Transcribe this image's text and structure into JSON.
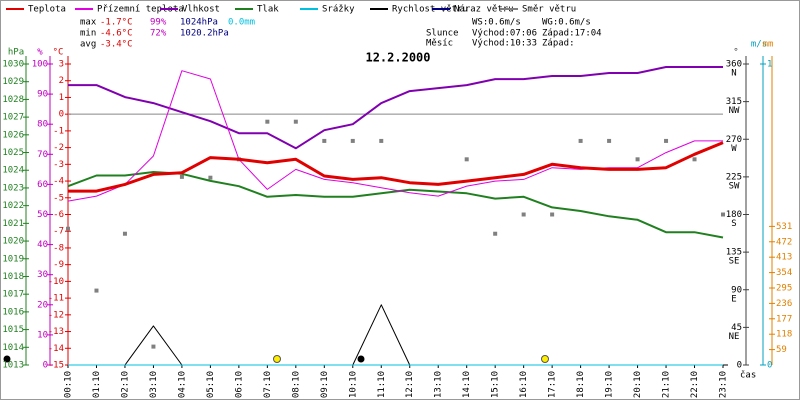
{
  "chart_data": {
    "type": "line",
    "title": "12.2.2000",
    "categories": [
      "00:10",
      "01:10",
      "02:10",
      "03:10",
      "04:10",
      "05:10",
      "06:10",
      "07:10",
      "08:10",
      "09:10",
      "10:10",
      "11:10",
      "12:10",
      "13:10",
      "14:10",
      "15:10",
      "16:10",
      "17:10",
      "18:10",
      "19:10",
      "20:10",
      "21:10",
      "22:10",
      "23:10"
    ],
    "x_label": "čas",
    "axes": [
      {
        "name": "hPa",
        "color": "#208020",
        "lim": [
          1013,
          1030
        ],
        "ticks": [
          1013,
          1014,
          1015,
          1016,
          1017,
          1018,
          1019,
          1020,
          1021,
          1022,
          1023,
          1024,
          1025,
          1026,
          1027,
          1028,
          1029,
          1030
        ]
      },
      {
        "name": "%",
        "color": "#c000c0",
        "lim": [
          0,
          100
        ],
        "ticks": [
          0,
          10,
          20,
          30,
          40,
          50,
          60,
          70,
          80,
          90,
          100
        ]
      },
      {
        "name": "°C",
        "color": "#e00000",
        "lim": [
          -15,
          3
        ],
        "ticks": [
          -15,
          -14,
          -13,
          -12,
          -11,
          -10,
          -9,
          -8,
          -7,
          -6,
          -5,
          -4,
          -3,
          -2,
          -1,
          0,
          1,
          2,
          3
        ]
      },
      {
        "name": "°",
        "color": "#404040",
        "lim": [
          0,
          360
        ],
        "ticks": [
          0,
          {
            "value": 45,
            "label": "NE"
          },
          {
            "value": 90,
            "label": "E"
          },
          {
            "value": 135,
            "label": "SE"
          },
          {
            "value": 180,
            "label": "S"
          },
          {
            "value": 225,
            "label": "SW"
          },
          {
            "value": 270,
            "label": "W"
          },
          {
            "value": 315,
            "label": "NW"
          },
          {
            "value": 360,
            "label": "N"
          }
        ]
      },
      {
        "name": "m/s",
        "color": "#00a0c0",
        "lim": [
          0,
          1
        ],
        "ticks": [
          0,
          1
        ]
      },
      {
        "name": "mm",
        "color": "#e08000",
        "lim": [
          0,
          1153
        ],
        "ticks": [
          59,
          118,
          177,
          236,
          295,
          354,
          413,
          472,
          531
        ]
      }
    ],
    "series": [
      {
        "name": "Teplota",
        "color": "#e00000",
        "axis": 2,
        "width": 3,
        "values": [
          -4.6,
          -4.6,
          -4.2,
          -3.6,
          -3.5,
          -2.6,
          -2.7,
          -2.9,
          -2.7,
          -3.7,
          -3.9,
          -3.8,
          -4.1,
          -4.2,
          -4.0,
          -3.8,
          -3.6,
          -3.0,
          -3.2,
          -3.3,
          -3.3,
          -3.2,
          -2.4,
          -1.7
        ]
      },
      {
        "name": "Přízemní teplota",
        "color": "#e000e0",
        "axis": 2,
        "width": 1,
        "values": [
          -5.2,
          -4.9,
          -4.2,
          -2.5,
          2.6,
          2.1,
          -2.7,
          -4.5,
          -3.3,
          -3.9,
          -4.1,
          -4.4,
          -4.7,
          -4.9,
          -4.3,
          -4.0,
          -3.9,
          -3.2,
          -3.3,
          -3.2,
          -3.2,
          -2.3,
          -1.6,
          -1.6
        ]
      },
      {
        "name": "Vlhkost",
        "color": "#8000b0",
        "axis": 1,
        "width": 2,
        "values": [
          93,
          93,
          89,
          87,
          84,
          81,
          77,
          77,
          72,
          78,
          80,
          87,
          91,
          92,
          93,
          95,
          95,
          96,
          96,
          97,
          97,
          99,
          99,
          99
        ]
      },
      {
        "name": "Tlak",
        "color": "#208020",
        "axis": 0,
        "width": 2,
        "values": [
          1023.1,
          1023.7,
          1023.7,
          1023.9,
          1023.8,
          1023.4,
          1023.1,
          1022.5,
          1022.6,
          1022.5,
          1022.5,
          1022.7,
          1022.9,
          1022.8,
          1022.7,
          1022.4,
          1022.5,
          1021.9,
          1021.7,
          1021.4,
          1021.2,
          1020.5,
          1020.5,
          1020.2
        ]
      },
      {
        "name": "Srážky",
        "color": "#00c0e0",
        "axis": 5,
        "width": 1,
        "values": [
          0,
          0,
          0,
          0,
          0,
          0,
          0,
          0,
          0,
          0,
          0,
          0,
          0,
          0,
          0,
          0,
          0,
          0,
          0,
          0,
          0,
          0,
          0,
          0
        ]
      },
      {
        "name": "Rychlost větru",
        "color": "#000000",
        "axis": 4,
        "width": 1,
        "values": [
          0,
          0,
          0,
          0.13,
          0,
          0,
          0,
          0,
          0,
          0,
          0,
          0.2,
          0,
          0,
          0,
          0,
          0,
          0,
          0,
          0,
          0,
          0,
          0,
          0
        ]
      },
      {
        "name": "Náraz větru",
        "color": "#000080",
        "axis": 4,
        "width": 1,
        "values": [
          0,
          0,
          0,
          0,
          0,
          0,
          0,
          0,
          0,
          0,
          0,
          0,
          0,
          0,
          0,
          0,
          0,
          0,
          0,
          0,
          0,
          0,
          0,
          0
        ]
      },
      {
        "name": "Směr větru",
        "color": "#808080",
        "axis": 3,
        "marker": "square",
        "values": [
          163,
          89,
          157,
          22,
          225,
          224,
          246,
          291,
          291,
          268,
          268,
          268,
          null,
          null,
          246,
          157,
          180,
          180,
          268,
          268,
          246,
          268,
          246,
          180
        ]
      }
    ],
    "stats": [
      {
        "label": "max",
        "items": [
          "-1.7°C",
          "99%",
          "1024hPa",
          "0.0mm"
        ]
      },
      {
        "label": "min",
        "items": [
          "-4.6°C",
          "72%",
          "1020.2hPa"
        ]
      },
      {
        "label": "avg",
        "items": [
          "-3.4°C"
        ]
      }
    ],
    "info": {
      "ws": "WS:0.6m/s",
      "wg": "WG:0.6m/s",
      "sun": "Slunce",
      "sun_rise": "Východ:07:06",
      "sun_set": "Západ:17:04",
      "moon": "Měsíc",
      "moon_rise": "Východ:10:33",
      "moon_set": "Západ:"
    }
  }
}
